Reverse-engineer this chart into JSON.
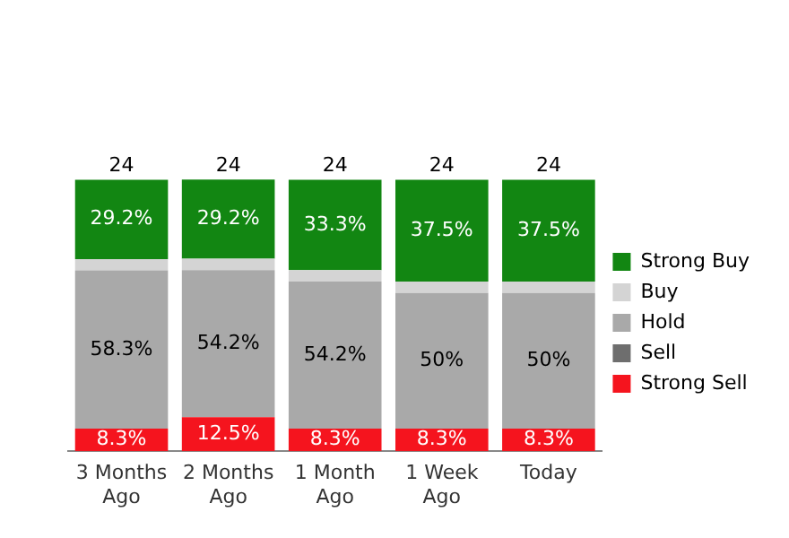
{
  "chart_data": {
    "type": "bar",
    "stacked": true,
    "categories": [
      "3 Months Ago",
      "2 Months Ago",
      "1 Month Ago",
      "1 Week Ago",
      "Today"
    ],
    "series": [
      {
        "name": "Strong Sell",
        "color": "#f5141e",
        "values": [
          8.3,
          12.5,
          8.3,
          8.3,
          8.3
        ],
        "value_labels": [
          "8.3%",
          "12.5%",
          "8.3%",
          "8.3%",
          "8.3%"
        ]
      },
      {
        "name": "Sell",
        "color": "#6e6e6e",
        "values": [
          null,
          null,
          null,
          null,
          null
        ]
      },
      {
        "name": "Hold",
        "color": "#a9a9a9",
        "values": [
          58.3,
          54.2,
          54.2,
          50,
          50
        ],
        "value_labels": [
          "58.3%",
          "54.2%",
          "54.2%",
          "50%",
          "50%"
        ]
      },
      {
        "name": "Buy",
        "color": "#d4d4d4",
        "values": [
          4.2,
          4.2,
          4.2,
          4.2,
          4.2
        ]
      },
      {
        "name": "Strong Buy",
        "color": "#128612",
        "values": [
          29.2,
          29.2,
          33.3,
          37.5,
          37.5
        ],
        "value_labels": [
          "29.2%",
          "29.2%",
          "33.3%",
          "37.5%",
          "37.5%"
        ]
      }
    ],
    "annotations": [
      {
        "text": "24",
        "x": "3 Months Ago",
        "y": 100
      },
      {
        "text": "24",
        "x": "2 Months Ago",
        "y": 100
      },
      {
        "text": "24",
        "x": "1 Month Ago",
        "y": 100
      },
      {
        "text": "24",
        "x": "1 Week Ago",
        "y": 100
      },
      {
        "text": "24",
        "x": "Today",
        "y": 100
      }
    ],
    "grid": false,
    "legend": "right"
  }
}
